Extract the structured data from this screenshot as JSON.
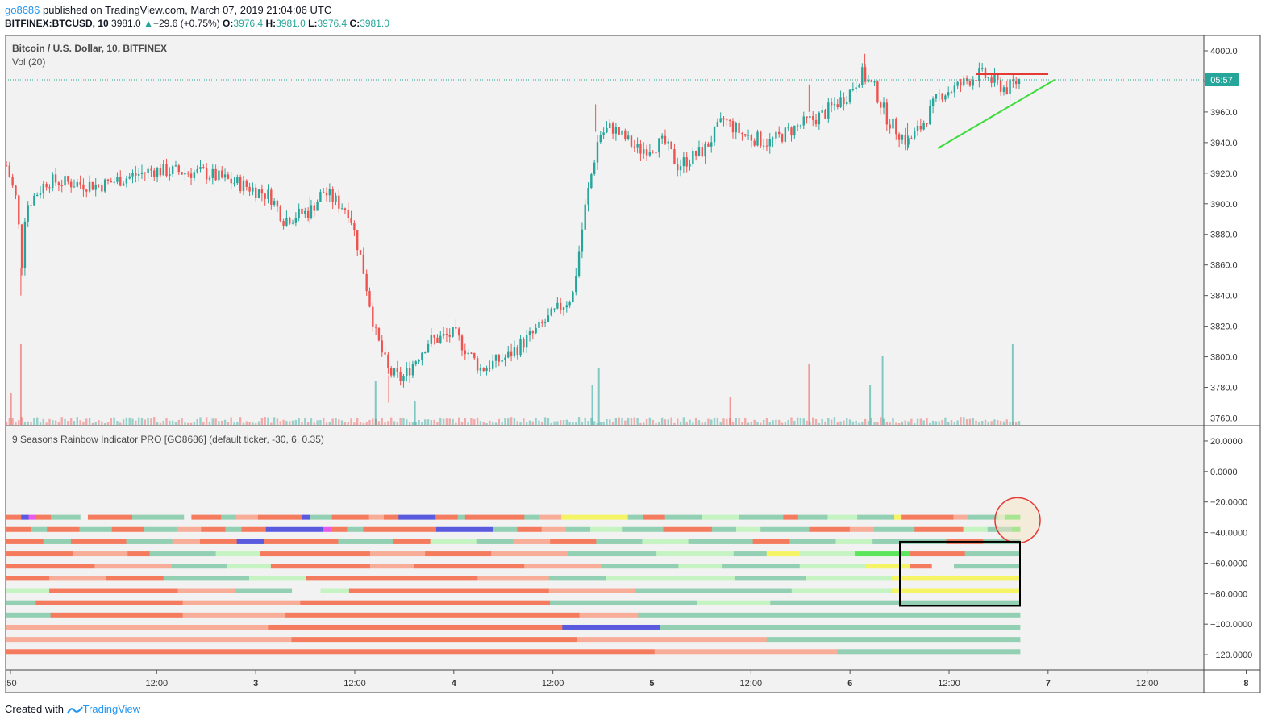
{
  "header": {
    "user": "go8686",
    "published": "published on TradingView.com, March 07, 2019 21:04:06 UTC",
    "ticker": "BITFINEX:BTCUSD, 10",
    "last": "3981.0",
    "change": "+29.6 (+0.75%)",
    "o_label": "O:",
    "o_value": "3976.4",
    "h_label": "H:",
    "h_value": "3981.0",
    "l_label": "L:",
    "l_value": "3976.4",
    "c_label": "C:",
    "c_value": "3981.0"
  },
  "main_pane": {
    "symbol_label": "Bitcoin / U.S. Dollar, 10, BITFINEX",
    "volume_label": "Vol (20)",
    "price_tag": "05:57",
    "price_axis": [
      "4000.0",
      "3980.0",
      "3960.0",
      "3940.0",
      "3920.0",
      "3900.0",
      "3880.0",
      "3860.0",
      "3840.0",
      "3820.0",
      "3800.0",
      "3780.0",
      "3760.0"
    ]
  },
  "indicator_pane": {
    "label": "9 Seasons Rainbow Indicator PRO [GO8686] (default ticker, -30, 6, 0.35)",
    "axis": [
      "20.0000",
      "0.0000",
      "−20.0000",
      "−40.0000",
      "−60.0000",
      "−80.0000",
      "−100.0000",
      "−120.0000"
    ]
  },
  "time_axis": [
    ":50",
    "12:00",
    "3",
    "12:00",
    "4",
    "12:00",
    "5",
    "12:00",
    "6",
    "12:00",
    "7",
    "12:00",
    "8",
    "12:00"
  ],
  "footer": {
    "created_with": "Created with",
    "brand": "TradingView"
  },
  "colors": {
    "up": "#26a69a",
    "down": "#ef5350",
    "background": "#f2f2f2",
    "price_line": "#26a69a",
    "resistance": "#e53935",
    "support": "#3bdc3b",
    "circle": "#e53935",
    "box": "#000000"
  },
  "chart_data": [
    {
      "type": "candlestick",
      "title": "Bitcoin / U.S. Dollar, 10, BITFINEX",
      "ylim": [
        3755,
        4010
      ],
      "x": [
        "3-2 ~17:50",
        "3-3 00:00",
        "3-3 12:00",
        "3-4 00:00",
        "3-4 12:00",
        "3-5 00:00",
        "3-5 12:00",
        "3-6 00:00",
        "3-6 12:00",
        "3-7 00:00",
        "3-7 12:00",
        "3-7 ~21:00"
      ],
      "close": [
        3925,
        3905,
        3920,
        3902,
        3780,
        3790,
        3825,
        3945,
        3935,
        3955,
        3945,
        3981
      ],
      "key_points": [
        {
          "t": "3-2 ~20:00",
          "low": 3840
        },
        {
          "t": "3-4 ~10:30",
          "high": 3905
        },
        {
          "t": "3-4 ~23:00",
          "low": 3770
        },
        {
          "t": "3-5 ~13:00",
          "high": 3965
        },
        {
          "t": "3-6 ~22:00",
          "high": 3978
        },
        {
          "t": "3-7 ~06:00",
          "high": 3998
        },
        {
          "t": "3-7 ~15:00",
          "low": 3935
        },
        {
          "t": "3-7 ~21:00",
          "close": 3981
        }
      ],
      "last_price": 3981.0,
      "volume": {
        "name": "Vol (20)",
        "spikes_at": [
          "3-2 ~20:00",
          "3-5 ~12:30",
          "3-6 ~22:00",
          "3-7 ~06:00",
          "3-7 ~21:00"
        ]
      },
      "trendlines": [
        {
          "name": "resistance",
          "from": {
            "t": "3-7 ~18:00",
            "y": 3985
          },
          "to": {
            "t": "3-8 ~01:00",
            "y": 3985
          }
        },
        {
          "name": "support",
          "from": {
            "t": "3-7 ~15:00",
            "y": 3935
          },
          "to": {
            "t": "3-8 ~02:00",
            "y": 3980
          }
        }
      ]
    },
    {
      "type": "heatmap",
      "title": "9 Seasons Rainbow Indicator PRO [GO8686] (default ticker, -30, 6, 0.35)",
      "ylim": [
        -130,
        30
      ],
      "rows_y": [
        -30,
        -38,
        -46,
        -54,
        -62,
        -70,
        -78,
        -86,
        -94,
        -102,
        -110,
        -118
      ],
      "palette": {
        "o": "#f47b5e",
        "p": "#f7ad98",
        "t": "#93cfb2",
        "l": "#c6f3c2",
        "y": "#f4f464",
        "g": "#5de65d",
        "b": "#5a5adf",
        "m": "#e85ae8",
        "w": "#f2f2f2"
      },
      "rows": [
        [
          [
            "o",
            2
          ],
          [
            "b",
            1
          ],
          [
            "m",
            1
          ],
          [
            "o",
            2
          ],
          [
            "t",
            4
          ],
          [
            "w",
            1
          ],
          [
            "o",
            6
          ],
          [
            "t",
            7
          ],
          [
            "w",
            1
          ],
          [
            "o",
            4
          ],
          [
            "t",
            2
          ],
          [
            "p",
            3
          ],
          [
            "o",
            6
          ],
          [
            "b",
            1
          ],
          [
            "t",
            3
          ],
          [
            "o",
            5
          ],
          [
            "p",
            2
          ],
          [
            "o",
            2
          ],
          [
            "b",
            5
          ],
          [
            "o",
            3
          ],
          [
            "t",
            1
          ],
          [
            "o",
            8
          ],
          [
            "t",
            2
          ],
          [
            "p",
            3
          ],
          [
            "y",
            9
          ],
          [
            "t",
            2
          ],
          [
            "o",
            3
          ],
          [
            "t",
            5
          ],
          [
            "l",
            5
          ],
          [
            "t",
            6
          ],
          [
            "o",
            2
          ],
          [
            "t",
            4
          ],
          [
            "l",
            4
          ],
          [
            "t",
            5
          ],
          [
            "y",
            1
          ],
          [
            "o",
            7
          ],
          [
            "p",
            2
          ],
          [
            "t",
            4
          ],
          [
            "l",
            1
          ],
          [
            "g",
            2
          ]
        ],
        [
          [
            "o",
            3
          ],
          [
            "t",
            2
          ],
          [
            "o",
            4
          ],
          [
            "t",
            4
          ],
          [
            "o",
            4
          ],
          [
            "t",
            4
          ],
          [
            "p",
            3
          ],
          [
            "o",
            3
          ],
          [
            "t",
            2
          ],
          [
            "o",
            3
          ],
          [
            "b",
            7
          ],
          [
            "m",
            1
          ],
          [
            "o",
            2
          ],
          [
            "t",
            2
          ],
          [
            "o",
            9
          ],
          [
            "b",
            7
          ],
          [
            "t",
            3
          ],
          [
            "o",
            3
          ],
          [
            "p",
            3
          ],
          [
            "t",
            3
          ],
          [
            "l",
            4
          ],
          [
            "t",
            5
          ],
          [
            "o",
            6
          ],
          [
            "t",
            3
          ],
          [
            "l",
            3
          ],
          [
            "t",
            6
          ],
          [
            "o",
            5
          ],
          [
            "p",
            3
          ],
          [
            "t",
            5
          ],
          [
            "o",
            6
          ],
          [
            "l",
            3
          ],
          [
            "t",
            3
          ],
          [
            "g",
            1
          ]
        ],
        [
          [
            "o",
            4
          ],
          [
            "t",
            3
          ],
          [
            "o",
            6
          ],
          [
            "t",
            5
          ],
          [
            "p",
            3
          ],
          [
            "o",
            4
          ],
          [
            "b",
            3
          ],
          [
            "o",
            8
          ],
          [
            "t",
            6
          ],
          [
            "o",
            4
          ],
          [
            "l",
            5
          ],
          [
            "t",
            4
          ],
          [
            "p",
            4
          ],
          [
            "o",
            5
          ],
          [
            "t",
            5
          ],
          [
            "l",
            5
          ],
          [
            "t",
            7
          ],
          [
            "o",
            4
          ],
          [
            "t",
            5
          ],
          [
            "l",
            4
          ],
          [
            "t",
            8
          ],
          [
            "o",
            4
          ],
          [
            "t",
            4
          ]
        ],
        [
          [
            "o",
            6
          ],
          [
            "p",
            5
          ],
          [
            "o",
            2
          ],
          [
            "t",
            6
          ],
          [
            "l",
            4
          ],
          [
            "o",
            10
          ],
          [
            "p",
            5
          ],
          [
            "o",
            6
          ],
          [
            "p",
            7
          ],
          [
            "t",
            8
          ],
          [
            "l",
            7
          ],
          [
            "t",
            3
          ],
          [
            "y",
            3
          ],
          [
            "l",
            5
          ],
          [
            "g",
            5
          ],
          [
            "o",
            5
          ],
          [
            "t",
            5
          ]
        ],
        [
          [
            "o",
            8
          ],
          [
            "p",
            7
          ],
          [
            "t",
            5
          ],
          [
            "l",
            4
          ],
          [
            "o",
            9
          ],
          [
            "p",
            4
          ],
          [
            "o",
            10
          ],
          [
            "p",
            7
          ],
          [
            "t",
            7
          ],
          [
            "l",
            4
          ],
          [
            "t",
            7
          ],
          [
            "l",
            6
          ],
          [
            "y",
            4
          ],
          [
            "o",
            2
          ],
          [
            "w",
            2
          ],
          [
            "t",
            6
          ]
        ],
        [
          [
            "o",
            3
          ],
          [
            "p",
            4
          ],
          [
            "o",
            4
          ],
          [
            "t",
            6
          ],
          [
            "l",
            4
          ],
          [
            "o",
            12
          ],
          [
            "p",
            5
          ],
          [
            "t",
            4
          ],
          [
            "l",
            9
          ],
          [
            "t",
            5
          ],
          [
            "l",
            6
          ],
          [
            "y",
            9
          ]
        ],
        [
          [
            "l",
            3
          ],
          [
            "o",
            9
          ],
          [
            "p",
            4
          ],
          [
            "t",
            4
          ],
          [
            "w",
            2
          ],
          [
            "l",
            2
          ],
          [
            "o",
            14
          ],
          [
            "p",
            6
          ],
          [
            "t",
            11
          ],
          [
            "l",
            7
          ],
          [
            "y",
            9
          ]
        ],
        [
          [
            "t",
            2
          ],
          [
            "o",
            10
          ],
          [
            "p",
            8
          ],
          [
            "o",
            17
          ],
          [
            "t",
            10
          ],
          [
            "l",
            5
          ],
          [
            "t",
            17
          ]
        ],
        [
          [
            "t",
            3
          ],
          [
            "o",
            9
          ],
          [
            "p",
            7
          ],
          [
            "o",
            20
          ],
          [
            "p",
            4
          ],
          [
            "t",
            26
          ]
        ],
        [
          [
            "p",
            16
          ],
          [
            "o",
            18
          ],
          [
            "b",
            6
          ],
          [
            "t",
            22
          ]
        ],
        [
          [
            "p",
            18
          ],
          [
            "o",
            18
          ],
          [
            "p",
            12
          ],
          [
            "t",
            16
          ]
        ],
        [
          [
            "o",
            39
          ],
          [
            "p",
            11
          ],
          [
            "t",
            11
          ]
        ]
      ],
      "annotations": [
        {
          "type": "circle",
          "t": "3-7 ~20:00",
          "y": -32
        },
        {
          "type": "rectangle",
          "from": {
            "t": "3-7 ~08:00",
            "y": -46
          },
          "to": {
            "t": "3-7 ~21:00",
            "y": -88
          }
        }
      ]
    }
  ]
}
